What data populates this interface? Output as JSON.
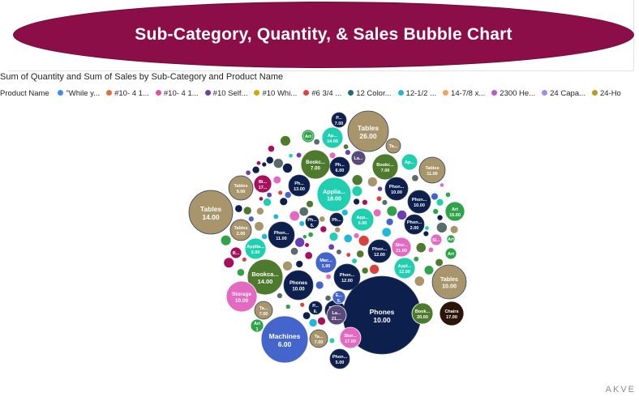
{
  "header": {
    "title": "Sub-Category, Quantity, & Sales Bubble Chart"
  },
  "visual": {
    "title": "Sum of Quantity and Sum of Sales by Sub-Category and Product Name",
    "legend_title": "Product Name",
    "legend": [
      {
        "label": "\"While y...",
        "color": "#3b8ee8"
      },
      {
        "label": "#10- 4 1...",
        "color": "#e0703a"
      },
      {
        "label": "#10- 4 1...",
        "color": "#e04fa6"
      },
      {
        "label": "#10 Self...",
        "color": "#6a3fb3"
      },
      {
        "label": "#10 Whi...",
        "color": "#d9a400"
      },
      {
        "label": "#6 3/4 ...",
        "color": "#d9433c"
      },
      {
        "label": "12 Color...",
        "color": "#1f6e6e"
      },
      {
        "label": "12-1/2 ...",
        "color": "#1fb8d8"
      },
      {
        "label": "14-7/8 x...",
        "color": "#f4a25a"
      },
      {
        "label": "2300 He...",
        "color": "#b45ad0"
      },
      {
        "label": "24 Capa...",
        "color": "#a78be8"
      },
      {
        "label": "24-Ho",
        "color": "#b89a1f"
      }
    ]
  },
  "colors": {
    "title_fill": "#8b0e48",
    "navy": "#0d1f4d",
    "tan": "#a8956b",
    "teal": "#1fcfb0",
    "olive": "#4d7a2c",
    "pink": "#e36ac0",
    "blue": "#4466cc",
    "green": "#2fa34a",
    "brown": "#2b1509",
    "magenta": "#a8105c",
    "gray": "#5a6b6b"
  },
  "chart_data": {
    "type": "scatter",
    "title": "Sum of Quantity and Sum of Sales by Sub-Category and Product Name",
    "labeled_bubbles": [
      {
        "label": "Phones",
        "value": "10.00",
        "color": "#0d1f4d"
      },
      {
        "label": "Tables",
        "value": "26.00",
        "color": "#a8956b"
      },
      {
        "label": "Tables",
        "value": "14.00",
        "color": "#a8956b"
      },
      {
        "label": "Machines",
        "value": "6.00",
        "color": "#4466cc"
      },
      {
        "label": "Applia...",
        "value": "18.00",
        "color": "#1fcfb0"
      },
      {
        "label": "Bookca...",
        "value": "14.00",
        "color": "#4d7a2c"
      },
      {
        "label": "Tables",
        "value": "10.00",
        "color": "#a8956b"
      },
      {
        "label": "Storage",
        "value": "10.00",
        "color": "#e36ac0"
      },
      {
        "label": "Phones",
        "value": "10.00",
        "color": "#0d1f4d"
      },
      {
        "label": "Phon...",
        "value": "12.00",
        "color": "#0d1f4d"
      },
      {
        "label": "Tables",
        "value": "11.00",
        "color": "#a8956b"
      },
      {
        "label": "Bookc...",
        "value": "7.00",
        "color": "#4d7a2c"
      },
      {
        "label": "Bookc...",
        "value": "7.00",
        "color": "#4d7a2c"
      },
      {
        "label": "Tables",
        "value": "9.00",
        "color": "#a8956b"
      },
      {
        "label": "Phon...",
        "value": "11.00",
        "color": "#0d1f4d"
      },
      {
        "label": "Phon...",
        "value": "10.00",
        "color": "#0d1f4d"
      },
      {
        "label": "Phon...",
        "value": "10.00",
        "color": "#0d1f4d"
      },
      {
        "label": "Applia...",
        "value": "5.00",
        "color": "#1fcfb0"
      },
      {
        "label": "Chairs",
        "value": "17.00",
        "color": "#2b1509"
      },
      {
        "label": "Book...",
        "value": "20.00",
        "color": "#4d7a2c"
      },
      {
        "label": "Phon...",
        "value": "5.00",
        "color": "#0d1f4d"
      },
      {
        "label": "Mac...",
        "value": "1.00",
        "color": "#4466cc"
      },
      {
        "label": "Stor...",
        "value": "17.00",
        "color": "#e36ac0"
      },
      {
        "label": "Appl...",
        "value": "12.00",
        "color": "#1fcfb0"
      },
      {
        "label": "Art",
        "value": "15.00",
        "color": "#2fa34a"
      },
      {
        "label": "Phon...",
        "value": "2.00",
        "color": "#0d1f4d"
      },
      {
        "label": "Phon...",
        "value": "12.00",
        "color": "#0d1f4d"
      },
      {
        "label": "Ap...",
        "value": "14.00",
        "color": "#1fcfb0"
      },
      {
        "label": "Ph...",
        "value": "13.00",
        "color": "#0d1f4d"
      },
      {
        "label": "Tables",
        "value": "2.00",
        "color": "#a8956b"
      },
      {
        "label": "App...",
        "value": "5.00",
        "color": "#1fcfb0"
      },
      {
        "label": "Ph...",
        "value": "6.00",
        "color": "#0d1f4d"
      },
      {
        "label": "Pho...",
        "value": "6.00",
        "color": "#0d1f4d"
      },
      {
        "label": "Stor...",
        "value": "21.00",
        "color": "#e36ac0"
      },
      {
        "label": "Ta...",
        "value": "7.00",
        "color": "#a8956b"
      },
      {
        "label": "Ta...",
        "value": "7.00",
        "color": "#a8956b"
      },
      {
        "label": "La...",
        "value": "21....",
        "color": "#5a4a7a"
      },
      {
        "label": "Bi...",
        "value": "17...",
        "color": "#a8105c"
      },
      {
        "label": "P...",
        "value": "7.00",
        "color": "#0d1f4d"
      },
      {
        "label": "Art",
        "value": "1",
        "color": "#2fa34a"
      },
      {
        "label": "Art",
        "value": "",
        "color": "#2fa34a"
      },
      {
        "label": "Sl...",
        "value": "",
        "color": "#e36ac0"
      },
      {
        "label": "Ta...",
        "value": "",
        "color": "#a8956b"
      },
      {
        "label": "Ap...",
        "value": "",
        "color": "#1fcfb0"
      },
      {
        "label": "Art",
        "value": "",
        "color": "#2fa34a"
      },
      {
        "label": "B...",
        "value": "",
        "color": "#a8105c"
      },
      {
        "label": "E...",
        "value": "5.",
        "color": "#4466cc"
      },
      {
        "label": "P...",
        "value": "6.",
        "color": "#0d1f4d"
      },
      {
        "label": "La...",
        "value": "",
        "color": "#5a4a7a"
      },
      {
        "label": "Ph...",
        "value": "5.",
        "color": "#0d1f4d"
      },
      {
        "label": "Art",
        "value": "",
        "color": "#2fa34a"
      },
      {
        "label": "Ph...",
        "value": "",
        "color": "#0d1f4d"
      },
      {
        "label": "Art",
        "value": "",
        "color": "#2fa34a"
      }
    ],
    "filler_palette": [
      "#0d1f4d",
      "#1fcfb0",
      "#4d7a2c",
      "#e36ac0",
      "#a8105c",
      "#2fa34a",
      "#4466cc",
      "#a8956b",
      "#5a6b6b",
      "#1fb8d8",
      "#6a3fb3",
      "#d9433c"
    ]
  },
  "watermark": "AKVE"
}
